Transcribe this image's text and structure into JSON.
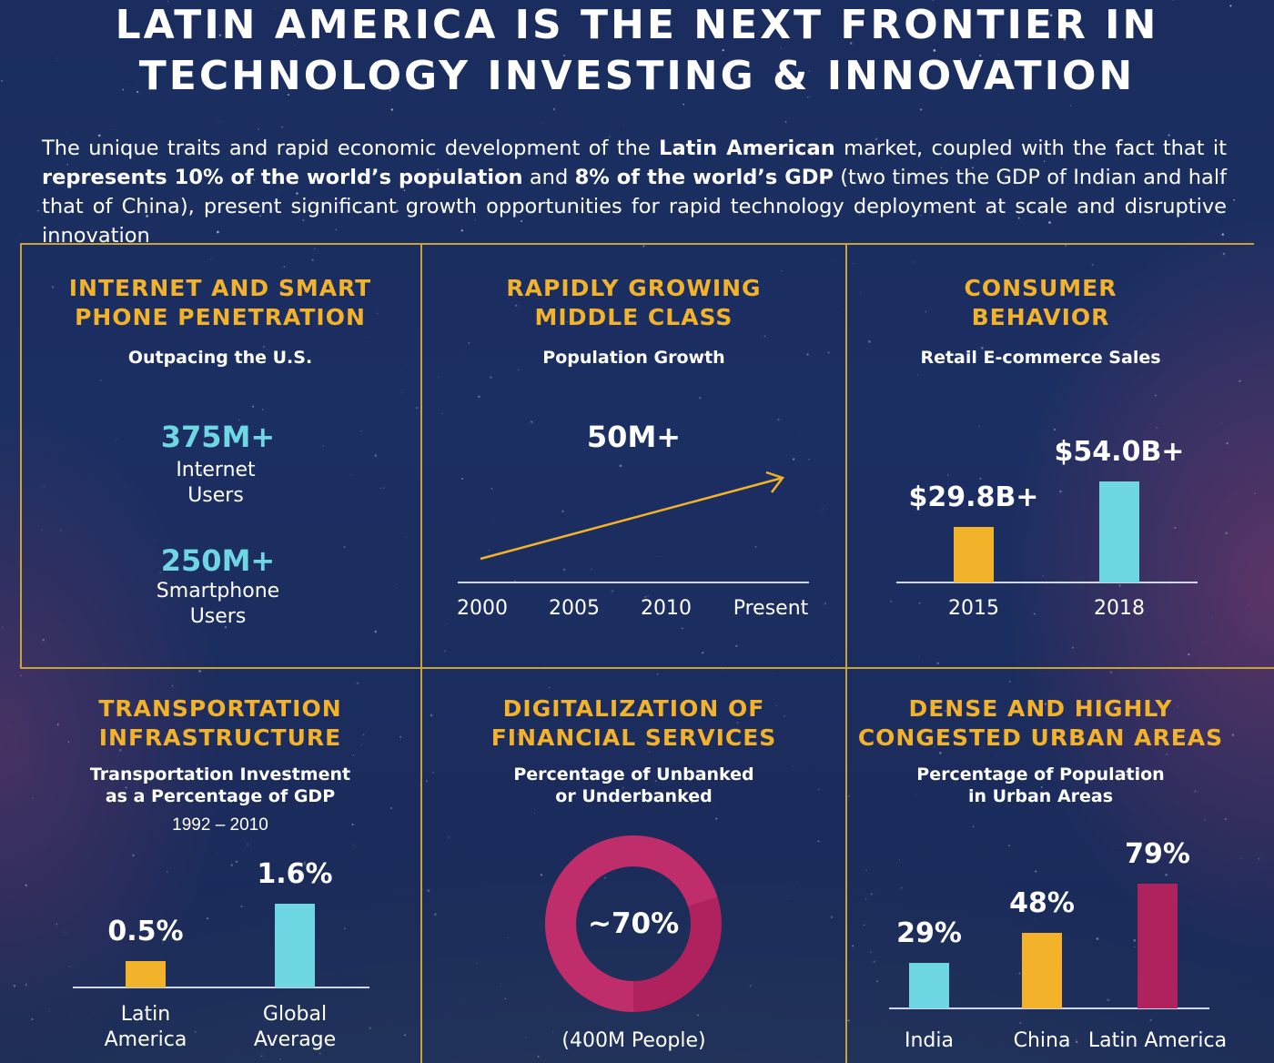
{
  "header": {
    "title_line1": "LATIN AMERICA IS THE NEXT FRONTIER IN",
    "title_line2": "TECHNOLOGY INVESTING & INNOVATION",
    "intro": [
      {
        "t": "The unique traits and rapid economic development of the ",
        "b": false
      },
      {
        "t": "Latin American",
        "b": true
      },
      {
        "t": " market, coupled with the fact that it ",
        "b": false
      },
      {
        "t": "represents 10% of the world’s population",
        "b": true
      },
      {
        "t": " and ",
        "b": false
      },
      {
        "t": "8% of the world’s GDP",
        "b": true
      },
      {
        "t": " (two times the GDP of Indian and half that of China), present significant growth opportunities for rapid technology deployment at scale and disruptive innovation",
        "b": false
      }
    ]
  },
  "colors": {
    "gold": "#f2b22a",
    "cyan": "#6fd6e3",
    "magenta": "#b0225e",
    "grid": "#c9a23a"
  },
  "panels": {
    "internet": {
      "head1": "INTERNET AND SMART",
      "head2": "PHONE PENETRATION",
      "sub": "Outpacing the U.S.",
      "stat1_value": "375M+",
      "stat1_l1": "Internet",
      "stat1_l2": "Users",
      "stat2_value": "250M+",
      "stat2_l1": "Smartphone",
      "stat2_l2": "Users"
    },
    "middle_class": {
      "head1": "RAPIDLY GROWING",
      "head2": "MIDDLE CLASS",
      "sub": "Population Growth",
      "value": "50M+",
      "ticks": [
        "2000",
        "2005",
        "2010",
        "Present"
      ]
    },
    "consumer": {
      "head1": "CONSUMER",
      "head2": "BEHAVIOR",
      "sub": "Retail E-commerce Sales",
      "chart_data": {
        "type": "bar",
        "categories": [
          "2015",
          "2018"
        ],
        "values": [
          29.8,
          54.0
        ],
        "labels": [
          "$29.8B+",
          "$54.0B+"
        ]
      }
    },
    "transport": {
      "head1": "TRANSPORTATION",
      "head2": "INFRASTRUCTURE",
      "sub1": "Transportation Investment",
      "sub2": "as a Percentage of GDP",
      "years": "1992 – 2010",
      "chart_data": {
        "type": "bar",
        "categories": [
          [
            "Latin",
            "America"
          ],
          [
            "Global",
            "Average"
          ]
        ],
        "values": [
          0.5,
          1.6
        ],
        "labels": [
          "0.5%",
          "1.6%"
        ]
      }
    },
    "financial": {
      "head1": "DIGITALIZATION OF",
      "head2": "FINANCIAL SERVICES",
      "sub1": "Percentage of Unbanked",
      "sub2": "or Underbanked",
      "chart_data": {
        "type": "pie",
        "value": 70,
        "label": "~70%"
      },
      "note": "(400M People)"
    },
    "urban": {
      "head1": "DENSE AND HIGHLY",
      "head2": "CONGESTED URBAN AREAS",
      "sub1": "Percentage of Population",
      "sub2": "in Urban Areas",
      "chart_data": {
        "type": "bar",
        "categories": [
          "India",
          "China",
          "Latin America"
        ],
        "values": [
          29,
          48,
          79
        ],
        "labels": [
          "29%",
          "48%",
          "79%"
        ]
      }
    }
  }
}
